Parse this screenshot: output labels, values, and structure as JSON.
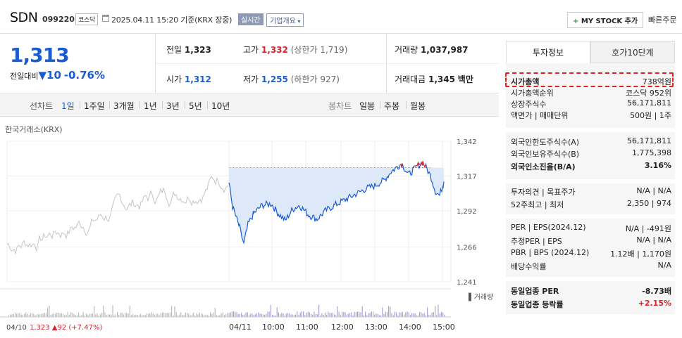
{
  "header": {
    "name": "SDN",
    "code": "099220",
    "market": "코스닥",
    "datetime": "2025.04.11 15:20",
    "basis": "기준(KRX 장중)",
    "realtime": "실시간",
    "corp_info": "기업개요",
    "mystock": "MY STOCK 추가",
    "quick_order": "빠른주문"
  },
  "quote": {
    "price": "1,313",
    "change_label": "전일대비",
    "change": "10",
    "change_pct": "-0.76%",
    "prev_label": "전일",
    "prev": "1,323",
    "high_label": "고가",
    "high": "1,332",
    "upper_limit": "(상한가 1,719)",
    "volume_label": "거래량",
    "volume": "1,037,987",
    "open_label": "시가",
    "open": "1,312",
    "low_label": "저가",
    "low": "1,255",
    "lower_limit": "(하한가 927)",
    "amount_label": "거래대금",
    "amount": "1,345",
    "amount_unit": "백만"
  },
  "tabs": {
    "line_label": "선차트",
    "line": [
      "1일",
      "1주일",
      "3개월",
      "1년",
      "3년",
      "5년",
      "10년"
    ],
    "candle_label": "봉차트",
    "candle": [
      "일봉",
      "주봉",
      "월봉"
    ]
  },
  "chart_data": {
    "type": "line",
    "exchange": "한국거래소(KRX)",
    "y_ticks": [
      "1,342",
      "1,317",
      "1,292",
      "1,266",
      "1,241"
    ],
    "ylim": [
      1241,
      1342
    ],
    "x_ticks": [
      "04/11",
      "10:00",
      "11:00",
      "12:00",
      "13:00",
      "14:00",
      "15:00"
    ],
    "left_x_tick": "04/10",
    "volume_label": "거래량",
    "prev_close": 1323,
    "footer": {
      "date": "04/10",
      "price": "1,323",
      "change": "92",
      "pct": "(+7.47%)"
    }
  },
  "side": {
    "tab1": "투자정보",
    "tab2": "호가10단계",
    "rows1": [
      {
        "k": "시가총액",
        "v": "738억원"
      },
      {
        "k": "시가총액순위",
        "v": "코스닥 952위"
      },
      {
        "k": "상장주식수",
        "v": "56,171,811"
      },
      {
        "k": "액면가 | 매매단위",
        "v": "500원 | 1주"
      }
    ],
    "rows2": [
      {
        "k": "외국인한도주식수(A)",
        "v": "56,171,811"
      },
      {
        "k": "외국인보유주식수(B)",
        "v": "1,775,398"
      },
      {
        "k": "외국인소진율(B/A)",
        "v": "3.16%"
      }
    ],
    "rows3": [
      {
        "k": "투자의견 | 목표주가",
        "v": "N/A | N/A"
      },
      {
        "k": "52주최고 | 최저",
        "v": "2,350 | 974"
      }
    ],
    "rows4": [
      {
        "k": "PER | EPS(2024.12)",
        "v": "N/A | -491원"
      },
      {
        "k": "추정PER | EPS",
        "v": "N/A | N/A"
      },
      {
        "k": "PBR | BPS (2024.12)",
        "v": "1.12배 | 1,170원"
      },
      {
        "k": "배당수익률",
        "v": "N/A"
      }
    ],
    "rows5": [
      {
        "k": "동일업종 PER",
        "v": "-8.73배"
      },
      {
        "k": "동일업종 등락률",
        "v": "+2.15%"
      }
    ]
  },
  "colors": {
    "blue": "#1a5bd4",
    "red": "#d9232d",
    "fill": "#dde9f8"
  }
}
